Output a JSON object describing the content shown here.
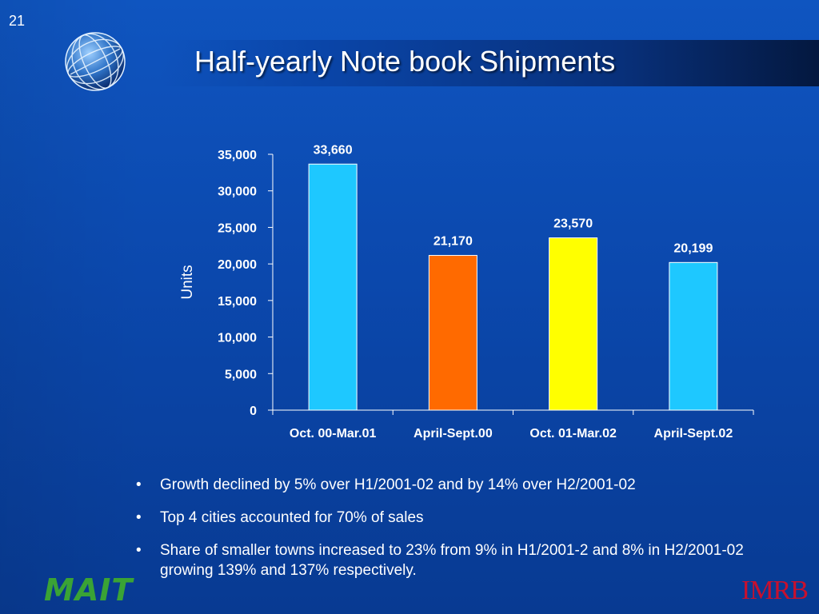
{
  "slide": {
    "number": "21",
    "title": "Half-yearly Note book Shipments"
  },
  "chart_data": {
    "type": "bar",
    "categories": [
      "Oct. 00-Mar.01",
      "April-Sept.00",
      "Oct. 01-Mar.02",
      "April-Sept.02"
    ],
    "values": [
      33660,
      21170,
      23570,
      20199
    ],
    "data_labels": [
      "33,660",
      "21,170",
      "23,570",
      "20,199"
    ],
    "bar_colors": [
      "#1ec8ff",
      "#ff6a00",
      "#ffff00",
      "#1ec8ff"
    ],
    "title": "",
    "xlabel": "",
    "ylabel": "Units",
    "ylim": [
      0,
      35000
    ],
    "yticks": [
      0,
      5000,
      10000,
      15000,
      20000,
      25000,
      30000,
      35000
    ],
    "ytick_labels": [
      "0",
      "5,000",
      "10,000",
      "15,000",
      "20,000",
      "25,000",
      "30,000",
      "35,000"
    ],
    "grid": false,
    "legend": "none"
  },
  "bullets": [
    "Growth declined by 5% over H1/2001-02 and by 14% over H2/2001-02",
    "Top 4 cities accounted for 70% of sales",
    "Share of smaller towns increased to 23% from 9% in H1/2001-2 and 8% in H2/2001-02 growing 139% and 137% respectively."
  ],
  "bullet_symbol": "•",
  "logos": {
    "left": "MAIT",
    "right": "IMRB"
  },
  "icons": {
    "globe": "globe-icon"
  }
}
